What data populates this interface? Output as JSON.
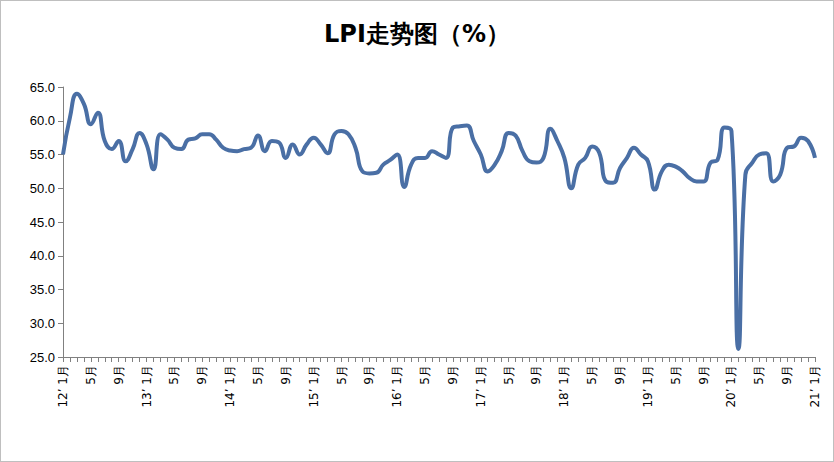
{
  "chart_data": {
    "type": "line",
    "title": "LPI走势图（%）",
    "categories": [
      "12’ 1月",
      null,
      null,
      null,
      "5月",
      null,
      null,
      null,
      "9月",
      null,
      null,
      null,
      "13’ 1月",
      null,
      null,
      null,
      "5月",
      null,
      null,
      null,
      "9月",
      null,
      null,
      null,
      "14’ 1月",
      null,
      null,
      null,
      "5月",
      null,
      null,
      null,
      "9月",
      null,
      null,
      null,
      "15’ 1月",
      null,
      null,
      null,
      "5月",
      null,
      null,
      null,
      "9月",
      null,
      null,
      null,
      "16’ 1月",
      null,
      null,
      null,
      "5月",
      null,
      null,
      null,
      "9月",
      null,
      null,
      null,
      "17’ 1月",
      null,
      null,
      null,
      "5月",
      null,
      null,
      null,
      "9月",
      null,
      null,
      null,
      "18’ 1月",
      null,
      null,
      null,
      "5月",
      null,
      null,
      null,
      "9月",
      null,
      null,
      null,
      "19’ 1月",
      null,
      null,
      null,
      "5月",
      null,
      null,
      null,
      "9月",
      null,
      null,
      null,
      "20’ 1月",
      null,
      null,
      null,
      "5月",
      null,
      null,
      null,
      "9月",
      null,
      null,
      null,
      "21’ 1月"
    ],
    "values": [
      55.0,
      60.5,
      64.0,
      62.5,
      59.5,
      61.2,
      57.0,
      55.8,
      57.0,
      54.0,
      55.8,
      58.2,
      56.5,
      52.8,
      58.0,
      57.2,
      56.0,
      55.8,
      57.2,
      57.4,
      58.0,
      58.0,
      57.2,
      56.0,
      55.6,
      55.5,
      55.8,
      56.0,
      57.8,
      55.5,
      57.0,
      56.8,
      54.5,
      56.5,
      55.0,
      56.5,
      57.5,
      56.5,
      55.2,
      58.0,
      58.5,
      58.0,
      56.0,
      52.5,
      52.2,
      52.3,
      53.5,
      54.2,
      55.0,
      50.2,
      53.5,
      54.5,
      54.5,
      55.5,
      55.0,
      54.5,
      59.0,
      59.2,
      59.3,
      57.0,
      55.0,
      52.5,
      53.5,
      55.5,
      58.2,
      57.8,
      55.5,
      54.0,
      53.8,
      54.5,
      58.8,
      57.0,
      54.5,
      50.0,
      53.5,
      54.5,
      56.2,
      55.3,
      51.0,
      50.8,
      53.0,
      54.5,
      56.0,
      55.0,
      54.0,
      49.8,
      52.5,
      53.5,
      53.2,
      52.5,
      51.5,
      51.0,
      51.0,
      53.8,
      54.2,
      59.0,
      58.5,
      26.2,
      52.0,
      53.8,
      55.0,
      55.2,
      51.0,
      52.0,
      56.0,
      56.2,
      57.5,
      57.0,
      54.5
    ],
    "color": "#4a6fa5",
    "ylim": [
      25,
      65
    ],
    "yticks": [
      {
        "value": 25,
        "label": "25.0"
      },
      {
        "value": 30,
        "label": "30.0"
      },
      {
        "value": 35,
        "label": "35.0"
      },
      {
        "value": 40,
        "label": "40.0"
      },
      {
        "value": 45,
        "label": "45.0"
      },
      {
        "value": 50,
        "label": "50.0"
      },
      {
        "value": 55,
        "label": "55.0"
      },
      {
        "value": 60,
        "label": "60.0"
      },
      {
        "value": 65,
        "label": "65.0"
      }
    ],
    "grid": false
  }
}
